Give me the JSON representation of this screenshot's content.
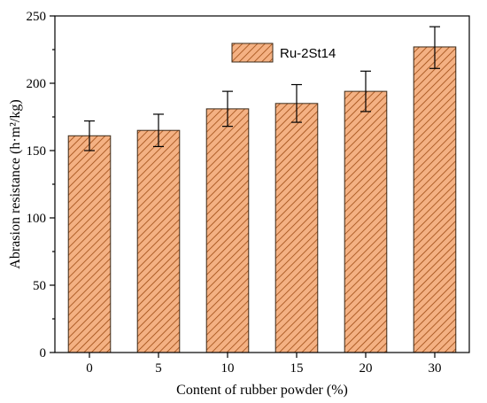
{
  "chart_data": {
    "type": "bar",
    "categories": [
      "0",
      "5",
      "10",
      "15",
      "20",
      "30"
    ],
    "series": [
      {
        "name": "Ru-2St14",
        "values": [
          161,
          165,
          181,
          185,
          194,
          227
        ],
        "error_low": [
          150,
          153,
          168,
          171,
          179,
          211
        ],
        "error_high": [
          172,
          177,
          194,
          199,
          209,
          242
        ]
      }
    ],
    "xlabel": "Content of rubber powder (%)",
    "ylabel": "Abrasion resistance (h·m²/kg)",
    "ylim": [
      0,
      250
    ],
    "yticks": [
      0,
      50,
      100,
      150,
      200,
      250
    ],
    "legend_position": "top-center",
    "grid": false,
    "colors": {
      "bar_fill": "#f4b183",
      "bar_hatch": "#9e4a12",
      "bar_stroke": "#3a2a1a",
      "axis": "#000000"
    }
  }
}
